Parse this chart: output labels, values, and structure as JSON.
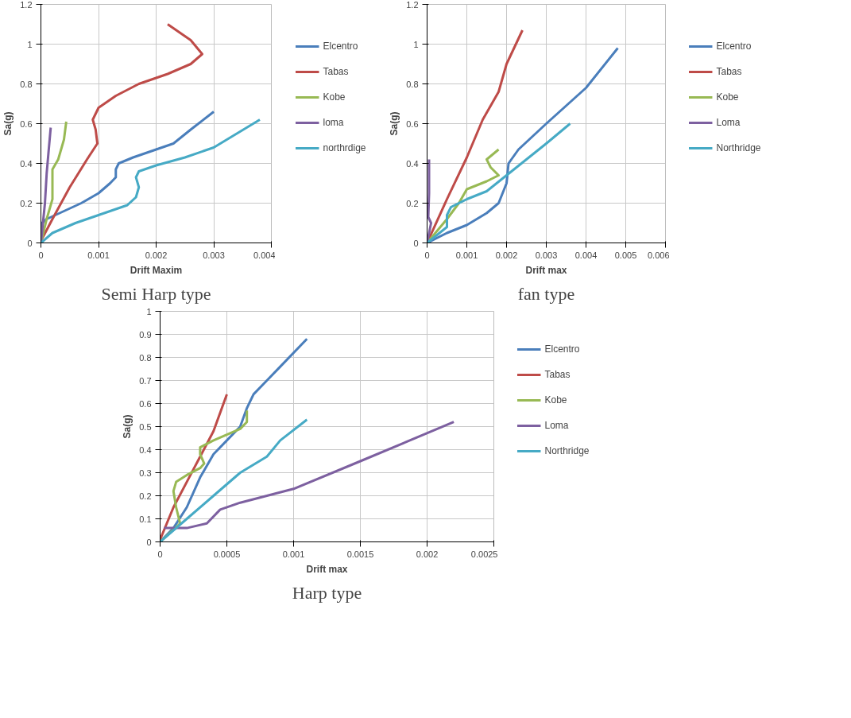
{
  "chart_data": [
    {
      "type": "line",
      "xlabel": "Drift Maxim",
      "ylabel": "Sa(g)",
      "annotations": [
        "Semi Harp type"
      ],
      "xlim": [
        0,
        0.004
      ],
      "xticks": [
        0,
        0.001,
        0.002,
        0.003,
        0.004
      ],
      "ylim": [
        0,
        1.2
      ],
      "yticks": [
        0,
        0.2,
        0.4,
        0.6,
        0.8,
        1,
        1.2
      ],
      "grid": true,
      "legend": "right",
      "series": [
        {
          "name": "Elcentro",
          "color": "#4a7ebb",
          "x": [
            0,
            2e-05,
            0.0001,
            0.0004,
            0.0007,
            0.001,
            0.0012,
            0.0013,
            0.0013,
            0.00135,
            0.0016,
            0.002,
            0.0023,
            0.0026,
            0.003
          ],
          "values": [
            0,
            0.1,
            0.12,
            0.16,
            0.2,
            0.25,
            0.3,
            0.33,
            0.37,
            0.4,
            0.43,
            0.47,
            0.5,
            0.57,
            0.66
          ]
        },
        {
          "name": "Tabas",
          "color": "#be4b48",
          "x": [
            0,
            0.0002,
            0.0005,
            0.0008,
            0.00098,
            0.00095,
            0.0009,
            0.001,
            0.0013,
            0.0017,
            0.0022,
            0.0026,
            0.0028,
            0.0026,
            0.0022
          ],
          "values": [
            0.01,
            0.12,
            0.28,
            0.42,
            0.5,
            0.57,
            0.62,
            0.68,
            0.74,
            0.8,
            0.85,
            0.9,
            0.95,
            1.02,
            1.1
          ]
        },
        {
          "name": "Kobe",
          "color": "#98b954",
          "x": [
            0,
            0.0001,
            0.0002,
            0.0002,
            0.0002,
            0.0003,
            0.0004,
            0.00044
          ],
          "values": [
            0,
            0.12,
            0.22,
            0.3,
            0.37,
            0.42,
            0.52,
            0.61
          ]
        },
        {
          "name": "loma",
          "color": "#7d60a0",
          "x": [
            0,
            7e-05,
            0.0001,
            0.00013,
            0.00017
          ],
          "values": [
            0,
            0.2,
            0.35,
            0.45,
            0.58
          ]
        },
        {
          "name": "northrdige",
          "color": "#46aac5",
          "x": [
            0,
            0.0002,
            0.0006,
            0.001,
            0.0015,
            0.00165,
            0.0017,
            0.00165,
            0.0017,
            0.002,
            0.0025,
            0.003,
            0.0034,
            0.0038
          ],
          "values": [
            0,
            0.05,
            0.1,
            0.14,
            0.19,
            0.23,
            0.28,
            0.33,
            0.36,
            0.39,
            0.43,
            0.48,
            0.55,
            0.62
          ]
        }
      ]
    },
    {
      "type": "line",
      "xlabel": "Drift max",
      "ylabel": "Sa(g)",
      "annotations": [
        "fan type"
      ],
      "xlim": [
        0,
        0.006
      ],
      "xticks": [
        0,
        0.001,
        0.002,
        0.003,
        0.004,
        0.005,
        0.006
      ],
      "ylim": [
        0,
        1.2
      ],
      "yticks": [
        0,
        0.2,
        0.4,
        0.6,
        0.8,
        1,
        1.2
      ],
      "grid": true,
      "legend": "right",
      "series": [
        {
          "name": "Elcentro",
          "color": "#4a7ebb",
          "x": [
            0,
            0.0005,
            0.001,
            0.0015,
            0.0018,
            0.002,
            0.00205,
            0.0023,
            0.003,
            0.004,
            0.0048
          ],
          "values": [
            0,
            0.05,
            0.09,
            0.15,
            0.2,
            0.3,
            0.4,
            0.47,
            0.6,
            0.78,
            0.98
          ]
        },
        {
          "name": "Tabas",
          "color": "#be4b48",
          "x": [
            0,
            0.0005,
            0.001,
            0.0014,
            0.0018,
            0.002,
            0.0024
          ],
          "values": [
            0,
            0.22,
            0.43,
            0.62,
            0.76,
            0.9,
            1.07
          ]
        },
        {
          "name": "Kobe",
          "color": "#98b954",
          "x": [
            0,
            0.0005,
            0.0008,
            0.001,
            0.0015,
            0.0018,
            0.0016,
            0.0015,
            0.0018
          ],
          "values": [
            0,
            0.12,
            0.2,
            0.27,
            0.31,
            0.34,
            0.38,
            0.42,
            0.47
          ]
        },
        {
          "name": "Loma",
          "color": "#7d60a0",
          "x": [
            0,
            5e-05,
            0.0001,
            3e-05,
            5e-05,
            5e-05
          ],
          "values": [
            0,
            0.05,
            0.1,
            0.13,
            0.25,
            0.42
          ]
        },
        {
          "name": "Northridge",
          "color": "#46aac5",
          "x": [
            0,
            0.0005,
            0.0005,
            0.0006,
            0.001,
            0.0015,
            0.002,
            0.003,
            0.0036
          ],
          "values": [
            0,
            0.08,
            0.14,
            0.18,
            0.22,
            0.26,
            0.34,
            0.5,
            0.6
          ]
        }
      ]
    },
    {
      "type": "line",
      "xlabel": "Drift max",
      "ylabel": "Sa(g)",
      "annotations": [
        "Harp type"
      ],
      "xlim": [
        0,
        0.0025
      ],
      "xticks": [
        0,
        0.0005,
        0.001,
        0.0015,
        0.002,
        0.0025
      ],
      "ylim": [
        0,
        1
      ],
      "yticks": [
        0,
        0.1,
        0.2,
        0.3,
        0.4,
        0.5,
        0.6,
        0.7,
        0.8,
        0.9,
        1
      ],
      "grid": true,
      "legend": "right",
      "series": [
        {
          "name": "Elcentro",
          "color": "#4a7ebb",
          "x": [
            0,
            0.0001,
            0.0002,
            0.0003,
            0.0004,
            0.0005,
            0.0006,
            0.00065,
            0.0007,
            0.0008,
            0.0009,
            0.0011
          ],
          "values": [
            0,
            0.06,
            0.15,
            0.28,
            0.38,
            0.44,
            0.5,
            0.58,
            0.64,
            0.7,
            0.76,
            0.88
          ]
        },
        {
          "name": "Tabas",
          "color": "#be4b48",
          "x": [
            0,
            0.0001,
            0.0002,
            0.0003,
            0.0004,
            0.0005
          ],
          "values": [
            0.01,
            0.15,
            0.26,
            0.37,
            0.48,
            0.64
          ]
        },
        {
          "name": "Kobe",
          "color": "#98b954",
          "x": [
            0,
            0.00015,
            0.00012,
            0.0001,
            0.00012,
            0.0002,
            0.0003,
            0.00033,
            0.0003,
            0.0003,
            0.0004,
            0.0006,
            0.00065,
            0.00065
          ],
          "values": [
            0,
            0.08,
            0.15,
            0.22,
            0.26,
            0.29,
            0.32,
            0.34,
            0.38,
            0.41,
            0.44,
            0.49,
            0.52,
            0.57
          ]
        },
        {
          "name": "Loma",
          "color": "#7d60a0",
          "x": [
            3e-05,
            0.0002,
            0.00035,
            0.00045,
            0.0006,
            0.001,
            0.0015,
            0.0022
          ],
          "values": [
            0.06,
            0.06,
            0.08,
            0.14,
            0.17,
            0.23,
            0.35,
            0.52
          ]
        },
        {
          "name": "Northridge",
          "color": "#46aac5",
          "x": [
            0,
            0.0002,
            0.0004,
            0.0006,
            0.0008,
            0.0009,
            0.0011
          ],
          "values": [
            0,
            0.1,
            0.2,
            0.3,
            0.37,
            0.44,
            0.53
          ]
        }
      ]
    }
  ]
}
